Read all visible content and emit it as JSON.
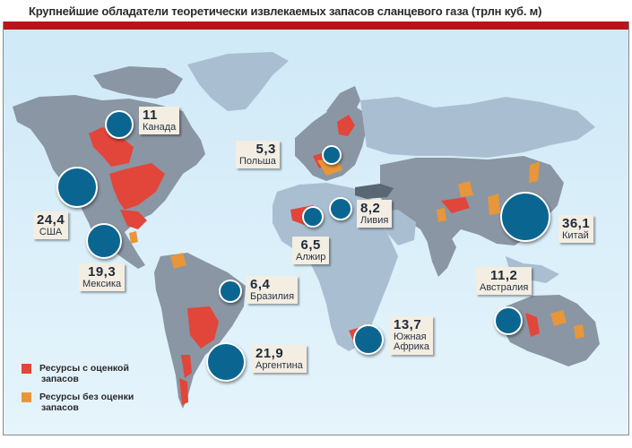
{
  "title": "Крупнейшие обладатели теоретически извлекаемых запасов сланцевого газа (трлн куб. м)",
  "colors": {
    "header_bar": "#b8141c",
    "bubble": "#0a6690",
    "assessed": "#e2463a",
    "unassessed": "#e8963a",
    "land": "#8a96a3",
    "land_light": "#a9bfd1",
    "ocean": "#d4edf8"
  },
  "countries": [
    {
      "name": "Канада",
      "value": "11"
    },
    {
      "name": "США",
      "value": "24,4"
    },
    {
      "name": "Мексика",
      "value": "19,3"
    },
    {
      "name": "Польша",
      "value": "5,3"
    },
    {
      "name": "Ливия",
      "value": "8,2"
    },
    {
      "name": "Алжир",
      "value": "6,5"
    },
    {
      "name": "Китай",
      "value": "36,1"
    },
    {
      "name": "Австралия",
      "value": "11,2"
    },
    {
      "name": "Бразилия",
      "value": "6,4"
    },
    {
      "name": "Аргентина",
      "value": "21,9"
    },
    {
      "name": "Южная Африка",
      "value": "13,7"
    }
  ],
  "south_africa_lines": [
    "Южная",
    "Африка"
  ],
  "legend": [
    {
      "label_line1": "Ресурсы с оценкой",
      "label_line2": "запасов",
      "color": "#e2463a"
    },
    {
      "label_line1": "Ресурсы без оценки",
      "label_line2": "запасов",
      "color": "#e8963a"
    }
  ]
}
